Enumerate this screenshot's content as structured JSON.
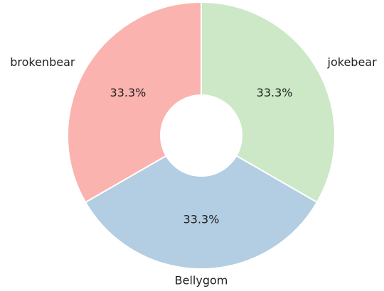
{
  "chart_data": {
    "type": "pie",
    "categories": [
      "jokebear",
      "Bellygom",
      "brokenbear"
    ],
    "values": [
      33.3,
      33.3,
      33.3
    ],
    "value_labels": [
      "33.3%",
      "33.3%",
      "33.3%"
    ],
    "colors": [
      "#cce8c6",
      "#b3cde2",
      "#fab3ae"
    ],
    "donut": true,
    "start_angle": "top, clockwise",
    "title": "",
    "legend": "none"
  }
}
